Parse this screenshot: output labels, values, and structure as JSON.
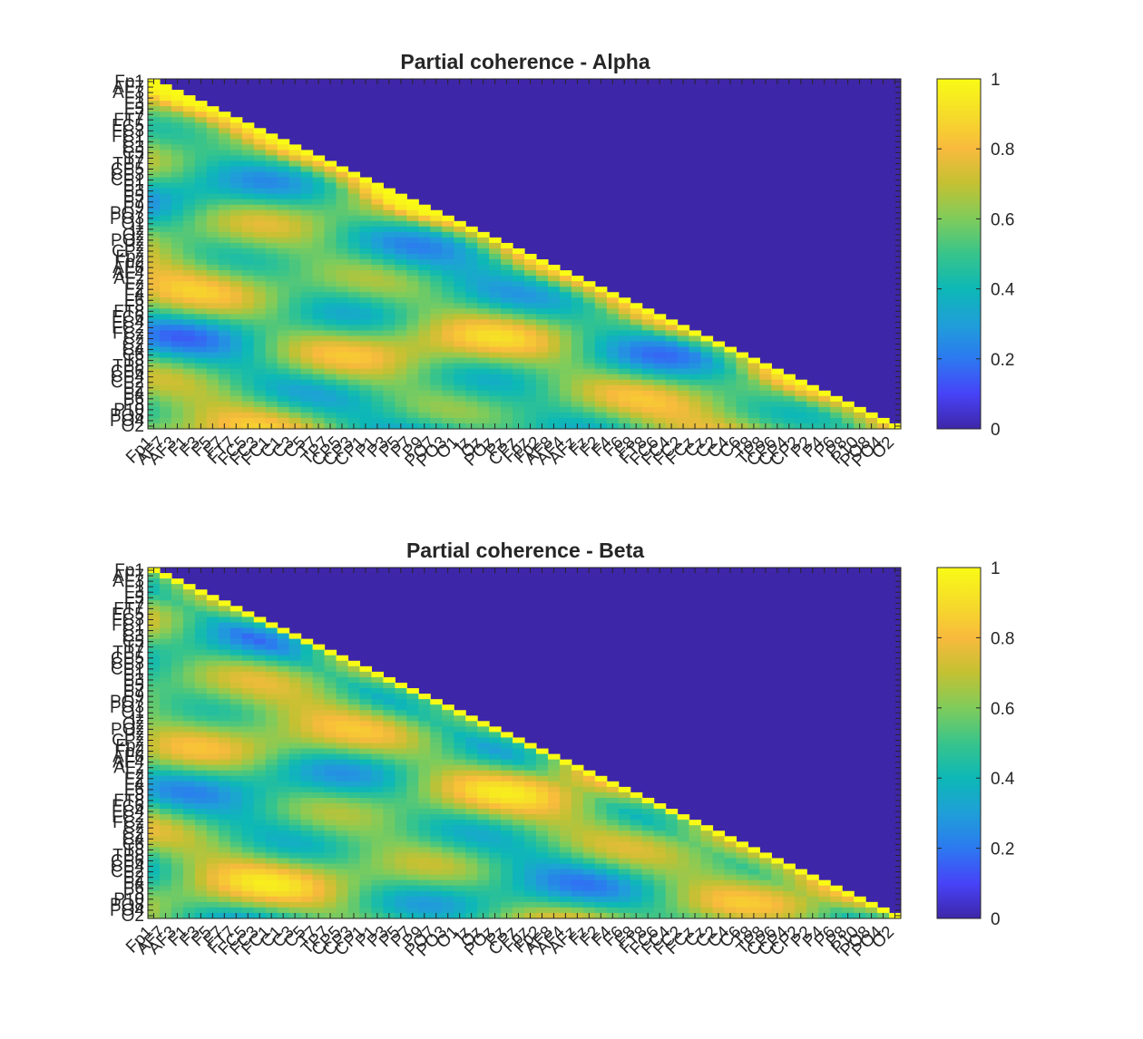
{
  "colors": {
    "background": "#ffffff",
    "axis": "#262626",
    "colormap": [
      "#3e26a8",
      "#4743f8",
      "#2c79f0",
      "#1f9fd8",
      "#0db8b6",
      "#38c48b",
      "#7fcc5b",
      "#c3c133",
      "#f8ba3d",
      "#f6dd29",
      "#f9fb15"
    ]
  },
  "chart_data": [
    {
      "type": "heatmap",
      "title": "Partial coherence - Alpha",
      "matrix": "lower-triangular",
      "diagonal": 1,
      "upper_triangle_value": 0,
      "n_channels": 64,
      "clim": [
        0,
        1
      ],
      "colormap": "parula",
      "colorbar": {
        "ticks": [
          "0",
          "0.2",
          "0.4",
          "0.6",
          "0.8",
          "1"
        ]
      },
      "y_labels": [
        "Fp1",
        "AF7",
        "AF3",
        "F1",
        "F3",
        "F5",
        "F7",
        "FT7",
        "FC5",
        "FC3",
        "FC1",
        "C1",
        "C3",
        "C5",
        "T7",
        "TP7",
        "CP5",
        "CP3",
        "CP1",
        "P1",
        "P3",
        "P5",
        "P7",
        "P9",
        "PO7",
        "PO3",
        "O1",
        "Iz",
        "Oz",
        "POz",
        "Pz",
        "CPz",
        "Fpz",
        "Fp2",
        "AF8",
        "AF4",
        "AFz",
        "Fz",
        "F2",
        "F4",
        "F6",
        "F8",
        "FT8",
        "FC6",
        "FC4",
        "FC2",
        "FCz",
        "Cz",
        "C2",
        "C4",
        "C6",
        "T8",
        "TP8",
        "CP6",
        "CP4",
        "CP2",
        "P2",
        "P4",
        "P6",
        "P8",
        "P10",
        "PO8",
        "PO4",
        "O2"
      ],
      "x_labels": [
        "Fp1",
        "AF7",
        "AF3",
        "F1",
        "F3",
        "F5",
        "F7",
        "FT7",
        "FC5",
        "FC3",
        "FC1",
        "C1",
        "C3",
        "C5",
        "T7",
        "TP7",
        "CP5",
        "CP3",
        "CP1",
        "P1",
        "P3",
        "P5",
        "P7",
        "P9",
        "PO7",
        "PO3",
        "O1",
        "Iz",
        "Oz",
        "POz",
        "Pz",
        "CPz",
        "Fpz",
        "Fp2",
        "AF8",
        "AF4",
        "AFz",
        "Fz",
        "F2",
        "F4",
        "F6",
        "F8",
        "FT8",
        "FC6",
        "FC4",
        "FC2",
        "FCz",
        "Cz",
        "C2",
        "C4",
        "C6",
        "T8",
        "TP8",
        "CP6",
        "CP4",
        "CP2",
        "P2",
        "P4",
        "P6",
        "P8",
        "P10",
        "PO8",
        "PO4",
        "O2"
      ]
    },
    {
      "type": "heatmap",
      "title": "Partial coherence - Beta",
      "matrix": "lower-triangular",
      "diagonal": 1,
      "upper_triangle_value": 0,
      "n_channels": 64,
      "clim": [
        0,
        1
      ],
      "colormap": "parula",
      "colorbar": {
        "ticks": [
          "0",
          "0.2",
          "0.4",
          "0.6",
          "0.8",
          "1"
        ]
      },
      "y_labels": [
        "Fp1",
        "AF7",
        "AF3",
        "F1",
        "F3",
        "F5",
        "F7",
        "FT7",
        "FC5",
        "FC3",
        "FC1",
        "C1",
        "C3",
        "C5",
        "T7",
        "TP7",
        "CP5",
        "CP3",
        "CP1",
        "P1",
        "P3",
        "P5",
        "P7",
        "P9",
        "PO7",
        "PO3",
        "O1",
        "Iz",
        "Oz",
        "POz",
        "Pz",
        "CPz",
        "Fpz",
        "Fp2",
        "AF8",
        "AF4",
        "AFz",
        "Fz",
        "F2",
        "F4",
        "F6",
        "F8",
        "FT8",
        "FC6",
        "FC4",
        "FC2",
        "FCz",
        "Cz",
        "C2",
        "C4",
        "C6",
        "T8",
        "TP8",
        "CP6",
        "CP4",
        "CP2",
        "P2",
        "P4",
        "P6",
        "P8",
        "P10",
        "PO8",
        "PO4",
        "O2"
      ],
      "x_labels": [
        "Fp1",
        "AF7",
        "AF3",
        "F1",
        "F3",
        "F5",
        "F7",
        "FT7",
        "FC5",
        "FC3",
        "FC1",
        "C1",
        "C3",
        "C5",
        "T7",
        "TP7",
        "CP5",
        "CP3",
        "CP1",
        "P1",
        "P3",
        "P5",
        "P7",
        "P9",
        "PO7",
        "PO3",
        "O1",
        "Iz",
        "Oz",
        "POz",
        "Pz",
        "CPz",
        "Fpz",
        "Fp2",
        "AF8",
        "AF4",
        "AFz",
        "Fz",
        "F2",
        "F4",
        "F6",
        "F8",
        "FT8",
        "FC6",
        "FC4",
        "FC2",
        "FCz",
        "Cz",
        "C2",
        "C4",
        "C6",
        "T8",
        "TP8",
        "CP6",
        "CP4",
        "CP2",
        "P2",
        "P4",
        "P6",
        "P8",
        "P10",
        "PO8",
        "PO4",
        "O2"
      ]
    }
  ]
}
